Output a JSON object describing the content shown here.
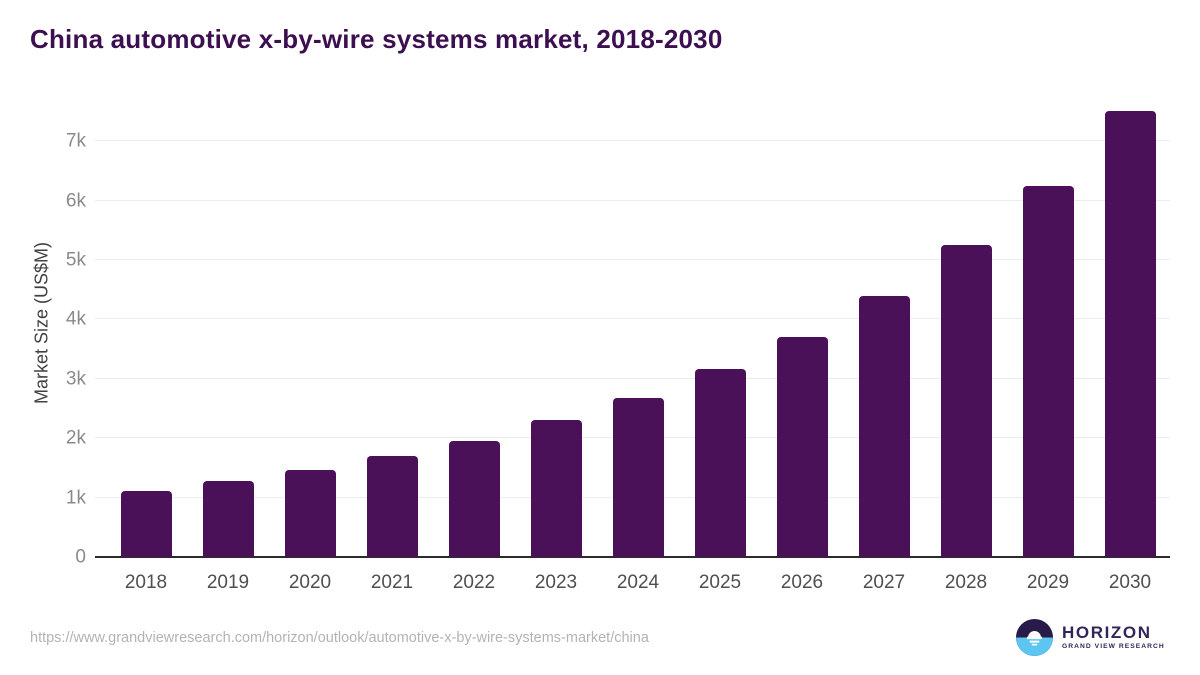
{
  "title": "China automotive x-by-wire systems market, 2018-2030",
  "chart_data": {
    "type": "bar",
    "title": "China automotive x-by-wire systems market, 2018-2030",
    "categories": [
      "2018",
      "2019",
      "2020",
      "2021",
      "2022",
      "2023",
      "2024",
      "2025",
      "2026",
      "2027",
      "2028",
      "2029",
      "2030"
    ],
    "values": [
      1110,
      1280,
      1460,
      1700,
      1960,
      2300,
      2680,
      3160,
      3710,
      4400,
      5250,
      6250,
      7500
    ],
    "xlabel": "",
    "ylabel": "Market Size (US$M)",
    "ylim": [
      0,
      7800
    ],
    "yticks": [
      0,
      1000,
      2000,
      3000,
      4000,
      5000,
      6000,
      7000
    ],
    "ytick_labels": [
      "0",
      "1k",
      "2k",
      "3k",
      "4k",
      "5k",
      "6k",
      "7k"
    ],
    "grid": "horizontal",
    "legend": "none",
    "bar_color": "#4a1158"
  },
  "colors": {
    "title": "#3c0f51",
    "bar": "#4a1158",
    "axis_line": "#2b2b2b",
    "gridline": "#ececec",
    "tick_label": "#8a8a8a",
    "x_label": "#4f4f4f",
    "url_text": "#b3b3b3",
    "logo_dark": "#281a49",
    "logo_blue": "#5cc6f0",
    "logo_text": "#312659"
  },
  "footer": {
    "source_url": "https://www.grandviewresearch.com/horizon/outlook/automotive-x-by-wire-systems-market/china",
    "logo_title": "HORIZON",
    "logo_subtitle": "GRAND VIEW RESEARCH"
  }
}
